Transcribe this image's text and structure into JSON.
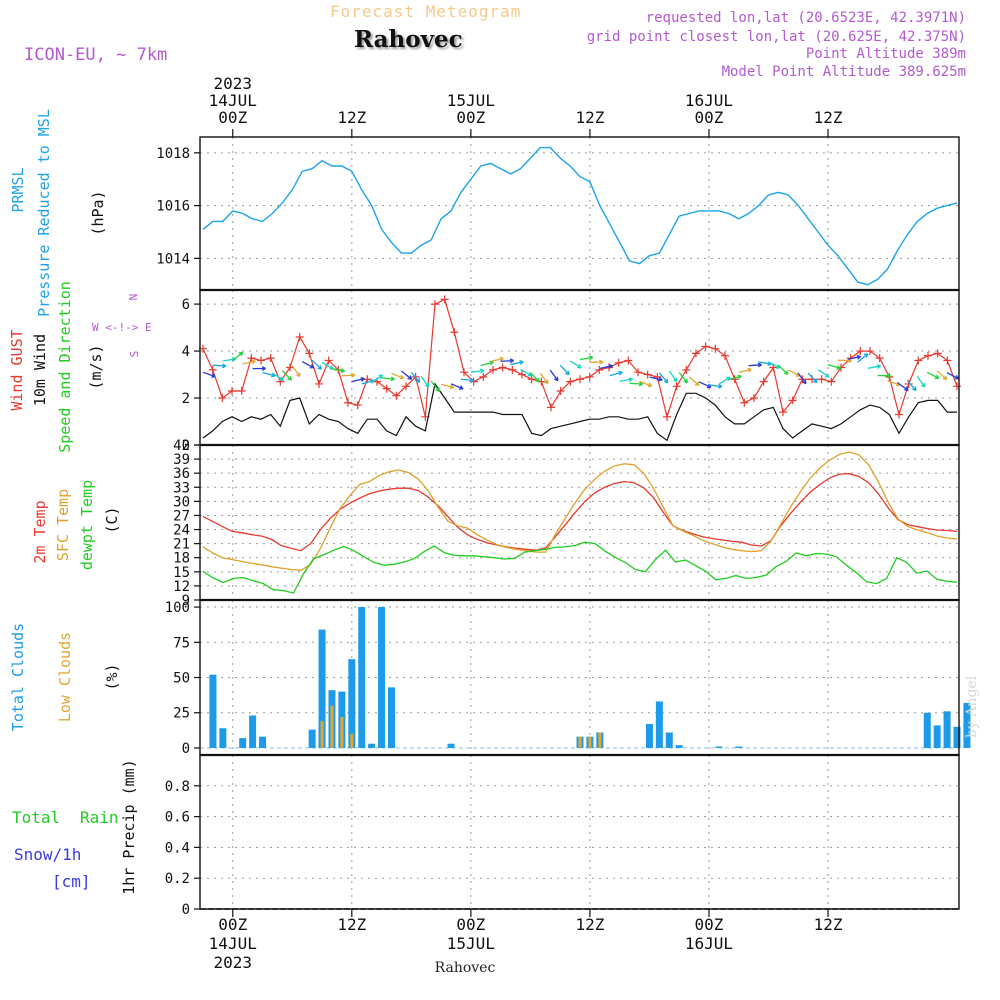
{
  "header": {
    "title": "Forecast Meteogram",
    "place": "Rahovec",
    "model": "ICON-EU, ~ 7km",
    "requested": "requested lon,lat (20.6523E, 42.3971N)",
    "grid_point": "grid point closest lon,lat (20.625E, 42.375N)",
    "point_altitude": "Point Altitude 389m",
    "model_altitude": "Model Point Altitude 389.625m",
    "credit": "by Angel",
    "footer_place": "Rahovec"
  },
  "colors": {
    "pressure": "#1ea3ea",
    "gust": "#e8392f",
    "wind": "#111111",
    "temp2m": "#e8392f",
    "sfc": "#e0a12a",
    "dewpt": "#22cc22",
    "total_clouds": "#1e9be8",
    "low_clouds": "#e0a830",
    "rain": "#22cc22",
    "snow": "#3a3ae0",
    "compass": "#b35ad1",
    "arrows": [
      "#2b3bd6",
      "#12a8e6",
      "#16d6c6",
      "#1fd43c",
      "#e0a830"
    ]
  },
  "chart_data": [
    {
      "type": "line",
      "name": "pressure",
      "ylabel": [
        "PRMSL",
        "Pressure Reduced to MSL",
        "(hPa)"
      ],
      "ylim": [
        1012.8,
        1018.6
      ],
      "yticks": [
        1014,
        1016,
        1018
      ],
      "grid": true,
      "x_hours_from_13JUL_21UTC": [
        0,
        1,
        2,
        3,
        4,
        5,
        6,
        7,
        8,
        9,
        10,
        11,
        12,
        13,
        14,
        15,
        16,
        17,
        18,
        19,
        20,
        21,
        22,
        23,
        24,
        25,
        26,
        27,
        28,
        29,
        30,
        31,
        32,
        33,
        34,
        35,
        36,
        37,
        38,
        39,
        40,
        41,
        42,
        43,
        44,
        45,
        46,
        47,
        48,
        49,
        50,
        51,
        52,
        53,
        54,
        55,
        56,
        57,
        58,
        59,
        60,
        61,
        62,
        63,
        64,
        65,
        66,
        67,
        68,
        69,
        70,
        71,
        72,
        73,
        74,
        75,
        76
      ],
      "series": [
        {
          "name": "PRMSL",
          "values": [
            1015.1,
            1015.4,
            1015.4,
            1015.8,
            1015.7,
            1015.5,
            1015.4,
            1015.7,
            1016.1,
            1016.6,
            1017.3,
            1017.4,
            1017.7,
            1017.5,
            1017.5,
            1017.3,
            1016.6,
            1016,
            1015.1,
            1014.6,
            1014.2,
            1014.2,
            1014.5,
            1014.7,
            1015.5,
            1015.8,
            1016.5,
            1017,
            1017.5,
            1017.6,
            1017.4,
            1017.2,
            1017.4,
            1017.8,
            1018.2,
            1018.2,
            1017.8,
            1017.5,
            1017.1,
            1016.9,
            1016,
            1015.3,
            1014.6,
            1013.9,
            1013.8,
            1014.1,
            1014.2,
            1014.9,
            1015.6,
            1015.7,
            1015.8,
            1015.8,
            1015.8,
            1015.7,
            1015.5,
            1015.7,
            1016,
            1016.4,
            1016.5,
            1016.4,
            1016,
            1015.5,
            1015,
            1014.5,
            1014.1,
            1013.6,
            1013.1,
            1013,
            1013.2,
            1013.6,
            1014.3,
            1014.9,
            1015.4,
            1015.7,
            1015.9,
            1016,
            1016.1
          ]
        }
      ]
    },
    {
      "type": "line",
      "name": "wind",
      "ylabel": [
        "Wind GUST",
        "10m Wind",
        "Speed and Direction",
        "(m/s)"
      ],
      "compass": [
        "N",
        "W <-!-> E",
        "S"
      ],
      "ylim": [
        0,
        6.6
      ],
      "yticks": [
        0,
        2,
        4,
        6
      ],
      "grid": true,
      "series": [
        {
          "name": "Wind GUST",
          "values": [
            4.1,
            3.2,
            2.0,
            2.3,
            2.3,
            3.7,
            3.6,
            3.7,
            2.7,
            3.3,
            4.6,
            3.9,
            2.6,
            3.6,
            3.2,
            1.8,
            1.7,
            2.8,
            2.7,
            2.4,
            2.1,
            2.5,
            2.9,
            1.2,
            6.0,
            6.2,
            4.8,
            3.1,
            2.7,
            2.9,
            3.2,
            3.3,
            3.2,
            3.0,
            2.8,
            2.7,
            1.6,
            2.3,
            2.7,
            2.8,
            2.9,
            3.2,
            3.3,
            3.5,
            3.6,
            3.1,
            3.0,
            2.9,
            1.2,
            2.5,
            3.2,
            3.9,
            4.2,
            4.1,
            3.8,
            2.8,
            1.8,
            2.0,
            2.7,
            3.3,
            1.4,
            1.9,
            2.8,
            2.8,
            2.8,
            2.7,
            3.3,
            3.7,
            4.0,
            4.0,
            3.7,
            2.9,
            1.3,
            2.6,
            3.6,
            3.8,
            3.9,
            3.6,
            2.5
          ]
        },
        {
          "name": "10m Wind",
          "values": [
            0.3,
            0.6,
            1.0,
            1.2,
            1.0,
            1.2,
            1.1,
            1.3,
            0.8,
            1.9,
            2.0,
            0.9,
            1.3,
            1.1,
            1.0,
            0.7,
            0.5,
            1.1,
            1.1,
            0.6,
            0.4,
            1.2,
            0.8,
            0.6,
            2.6,
            2.0,
            1.4,
            1.4,
            1.4,
            1.4,
            1.4,
            1.3,
            1.3,
            1.3,
            0.5,
            0.4,
            0.7,
            0.8,
            0.9,
            1.0,
            1.1,
            1.1,
            1.2,
            1.2,
            1.1,
            1.1,
            1.2,
            0.5,
            0.2,
            1.3,
            2.2,
            2.2,
            2.0,
            1.7,
            1.2,
            0.9,
            0.9,
            1.2,
            1.5,
            1.6,
            0.7,
            0.3,
            0.6,
            0.9,
            0.8,
            0.7,
            0.9,
            1.2,
            1.5,
            1.7,
            1.6,
            1.3,
            0.5,
            1.2,
            1.8,
            1.9,
            1.9,
            1.4,
            1.4
          ]
        }
      ]
    },
    {
      "type": "line",
      "name": "temperature",
      "ylabel": [
        "2m Temp",
        "SFC Temp",
        "dewpt Temp",
        "(C)"
      ],
      "ylim": [
        9,
        42
      ],
      "yticks": [
        9,
        12,
        15,
        18,
        21,
        24,
        27,
        30,
        33,
        36,
        39,
        42
      ],
      "grid": true,
      "series": [
        {
          "name": "2m Temp",
          "values": [
            26.8,
            25.7,
            24.6,
            23.6,
            23.3,
            22.9,
            22.6,
            21.9,
            20.6,
            20.0,
            19.5,
            21.0,
            24.0,
            26.4,
            28.3,
            29.6,
            30.7,
            31.6,
            32.2,
            32.6,
            32.8,
            32.8,
            32.3,
            30.9,
            29.1,
            26.8,
            24.5,
            22.9,
            21.9,
            21.2,
            20.7,
            20.3,
            20.0,
            19.8,
            19.6,
            20.1,
            22.5,
            25.0,
            27.6,
            30.0,
            31.8,
            33.0,
            33.8,
            34.2,
            34.0,
            32.9,
            30.8,
            27.7,
            24.8,
            23.8,
            23.1,
            22.5,
            22.1,
            21.8,
            21.5,
            21.3,
            20.7,
            20.5,
            21.6,
            24.8,
            27.4,
            29.8,
            31.9,
            33.6,
            35.0,
            35.8,
            35.9,
            35.3,
            33.9,
            31.5,
            28.5,
            26.1,
            25.0,
            24.6,
            24.2,
            23.9,
            23.8,
            23.6
          ]
        },
        {
          "name": "SFC Temp",
          "values": [
            20.3,
            19.0,
            18.0,
            17.6,
            17.2,
            16.8,
            16.5,
            16.1,
            15.8,
            15.5,
            15.3,
            16.6,
            20.0,
            24.4,
            28.5,
            31.2,
            33.6,
            34.2,
            35.5,
            36.3,
            36.7,
            36.1,
            34.7,
            32.3,
            28.8,
            25.8,
            24.8,
            24.3,
            22.9,
            21.8,
            20.8,
            20.2,
            19.8,
            19.5,
            19.2,
            19.2,
            23.0,
            26.4,
            29.7,
            32.6,
            34.7,
            36.4,
            37.5,
            38.0,
            37.8,
            36.0,
            32.8,
            28.8,
            24.8,
            23.7,
            22.8,
            21.7,
            21.0,
            20.3,
            19.8,
            19.5,
            19.3,
            19.5,
            21.5,
            25.1,
            28.8,
            32.0,
            34.9,
            37.1,
            38.8,
            40.0,
            40.5,
            39.9,
            37.7,
            34.0,
            29.7,
            26.2,
            24.6,
            23.9,
            23.3,
            22.6,
            22.2,
            22.0
          ]
        },
        {
          "name": "dewpt Temp",
          "values": [
            15.1,
            13.7,
            12.7,
            13.6,
            13.8,
            13.1,
            12.5,
            11.2,
            11.0,
            10.5,
            14.6,
            17.8,
            18.6,
            19.6,
            20.4,
            19.5,
            18.2,
            17.0,
            16.4,
            16.6,
            17.1,
            17.8,
            19.3,
            20.5,
            19.1,
            18.5,
            18.4,
            18.4,
            18.2,
            18.0,
            17.7,
            17.9,
            19.2,
            19.5,
            19.8,
            20.2,
            20.3,
            20.6,
            21.3,
            21.0,
            19.4,
            18.1,
            17.0,
            15.5,
            15.0,
            17.6,
            19.6,
            17.1,
            17.5,
            16.3,
            15.1,
            13.3,
            13.6,
            14.2,
            13.6,
            13.8,
            14.3,
            16.1,
            17.2,
            19.0,
            18.4,
            18.9,
            18.8,
            18.2,
            16.4,
            14.8,
            12.9,
            12.5,
            13.6,
            18.0,
            17.0,
            14.7,
            15.2,
            13.4,
            13.0,
            12.8
          ]
        }
      ]
    },
    {
      "type": "bar",
      "name": "clouds",
      "ylabel": [
        "Total Clouds",
        "Low Clouds",
        "(%)"
      ],
      "ylim": [
        -5,
        105
      ],
      "yticks": [
        0,
        25,
        50,
        75,
        100
      ],
      "grid": true,
      "series": [
        {
          "name": "Total Clouds",
          "values": [
            0,
            52,
            14,
            0,
            7,
            23,
            8,
            0,
            0,
            0,
            0,
            13,
            84,
            41,
            40,
            63,
            100,
            3,
            100,
            43,
            0,
            0,
            0,
            0,
            0,
            3,
            0,
            0,
            0,
            0,
            0,
            0,
            0,
            0,
            0,
            0,
            0,
            0,
            8,
            8,
            11,
            0,
            0,
            0,
            0,
            17,
            33,
            11,
            2,
            0,
            0,
            0,
            1,
            0,
            1,
            0,
            0,
            0,
            0,
            0,
            0,
            0,
            0,
            0,
            0,
            0,
            0,
            0,
            0,
            0,
            0,
            0,
            0,
            25,
            16,
            26,
            15,
            32
          ]
        },
        {
          "name": "Low Clouds",
          "values": [
            0,
            0,
            0,
            0,
            0,
            0,
            0,
            0,
            0,
            0,
            0,
            0,
            19,
            30,
            22,
            10,
            0,
            0,
            0,
            0,
            0,
            0,
            0,
            0,
            0,
            0,
            0,
            0,
            0,
            0,
            0,
            0,
            0,
            0,
            0,
            0,
            0,
            0,
            8,
            8,
            11,
            0,
            0,
            0,
            0,
            0,
            0,
            0,
            0,
            0,
            0,
            0,
            0,
            0,
            0,
            0,
            0,
            0,
            0,
            0,
            0,
            0,
            0,
            0,
            0,
            0,
            0,
            0,
            0,
            0,
            0,
            0,
            0,
            0,
            0,
            0,
            0,
            0
          ]
        }
      ]
    },
    {
      "type": "line",
      "name": "precip",
      "ylabel": [
        "1hr Precip (mm)"
      ],
      "legend": [
        "Total",
        "Rain",
        "Snow/1h",
        "[cm]"
      ],
      "ylim": [
        0,
        1
      ],
      "yticks": [
        0,
        0.2,
        0.4,
        0.6,
        0.8
      ],
      "grid": true,
      "series": [
        {
          "name": "Total Rain",
          "values": [
            0,
            0,
            0,
            0,
            0,
            0,
            0,
            0,
            0,
            0,
            0,
            0,
            0,
            0,
            0,
            0,
            0,
            0,
            0,
            0,
            0,
            0,
            0,
            0,
            0,
            0,
            0,
            0,
            0,
            0,
            0,
            0,
            0,
            0,
            0,
            0,
            0,
            0,
            0,
            0,
            0,
            0,
            0,
            0,
            0,
            0,
            0,
            0,
            0,
            0,
            0,
            0,
            0,
            0,
            0,
            0,
            0,
            0,
            0,
            0,
            0,
            0,
            0,
            0,
            0,
            0,
            0,
            0,
            0,
            0,
            0,
            0,
            0,
            0,
            0,
            0,
            0
          ]
        },
        {
          "name": "Snow/1h",
          "values": [
            0,
            0,
            0,
            0,
            0,
            0,
            0,
            0,
            0,
            0,
            0,
            0,
            0,
            0,
            0,
            0,
            0,
            0,
            0,
            0,
            0,
            0,
            0,
            0,
            0,
            0,
            0,
            0,
            0,
            0,
            0,
            0,
            0,
            0,
            0,
            0,
            0,
            0,
            0,
            0,
            0,
            0,
            0,
            0,
            0,
            0,
            0,
            0,
            0,
            0,
            0,
            0,
            0,
            0,
            0,
            0,
            0,
            0,
            0,
            0,
            0,
            0,
            0,
            0,
            0,
            0,
            0,
            0,
            0,
            0,
            0,
            0,
            0,
            0,
            0,
            0,
            0
          ]
        }
      ]
    }
  ],
  "time_axis": {
    "top": [
      {
        "hour": 3,
        "lines": [
          "2023",
          "14JUL",
          "00Z"
        ]
      },
      {
        "hour": 15,
        "lines": [
          "12Z"
        ]
      },
      {
        "hour": 27,
        "lines": [
          "15JUL",
          "00Z"
        ]
      },
      {
        "hour": 39,
        "lines": [
          "12Z"
        ]
      },
      {
        "hour": 51,
        "lines": [
          "16JUL",
          "00Z"
        ]
      },
      {
        "hour": 63,
        "lines": [
          "12Z"
        ]
      }
    ],
    "bottom": [
      {
        "hour": 3,
        "lines": [
          "00Z",
          "14JUL",
          "2023"
        ]
      },
      {
        "hour": 15,
        "lines": [
          "12Z"
        ]
      },
      {
        "hour": 27,
        "lines": [
          "00Z",
          "15JUL"
        ]
      },
      {
        "hour": 39,
        "lines": [
          "12Z"
        ]
      },
      {
        "hour": 51,
        "lines": [
          "00Z",
          "16JUL"
        ]
      },
      {
        "hour": 63,
        "lines": [
          "12Z"
        ]
      }
    ]
  }
}
